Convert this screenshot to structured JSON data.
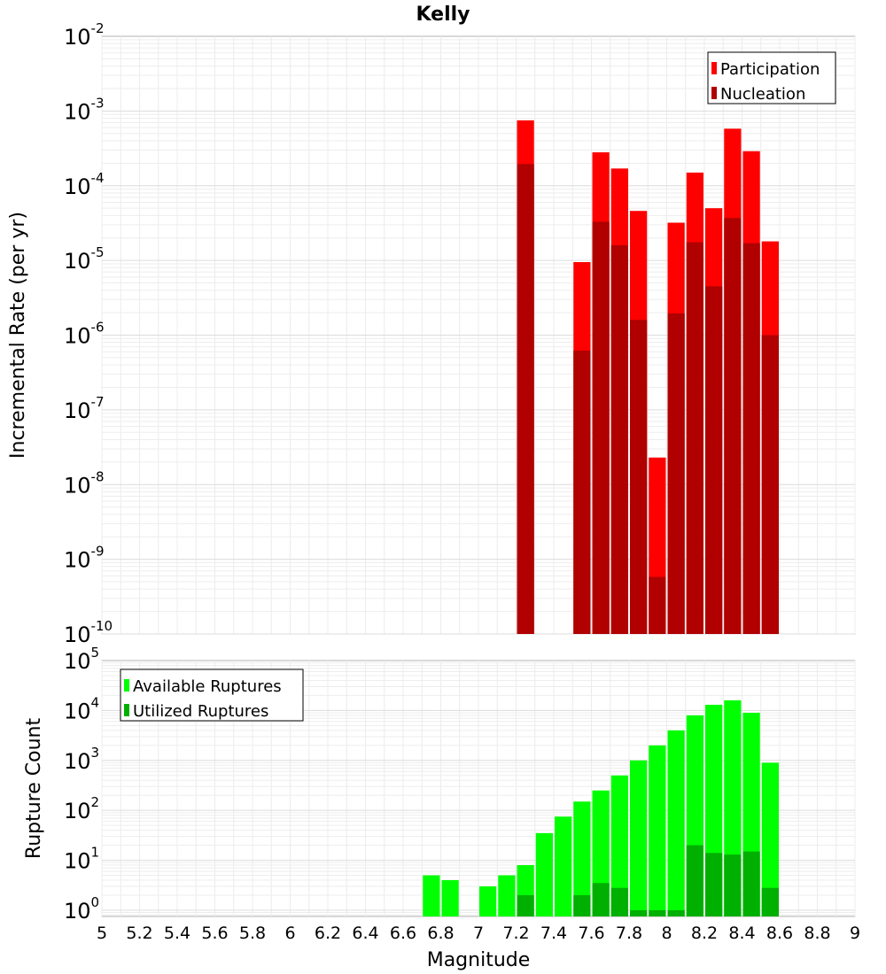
{
  "chart_data": [
    {
      "type": "bar",
      "title": "Kelly",
      "xlabel": "Magnitude",
      "ylabel": "Incremental Rate (per yr)",
      "yscale": "log",
      "xlim": [
        5,
        9
      ],
      "ylim": [
        1e-10,
        0.01
      ],
      "bin_width": 0.1,
      "grid": true,
      "legend_position": "top-right",
      "x": [
        7.25,
        7.55,
        7.65,
        7.75,
        7.85,
        7.95,
        8.05,
        8.15,
        8.25,
        8.35,
        8.45,
        8.55
      ],
      "series": [
        {
          "name": "Participation",
          "color": "#ff0000",
          "values": [
            0.00075,
            9.5e-06,
            0.00028,
            0.00017,
            4.6e-05,
            2.3e-08,
            3.2e-05,
            0.00015,
            5e-05,
            0.00058,
            0.00029,
            1.8e-05
          ]
        },
        {
          "name": "Nucleation",
          "color": "#b00000",
          "values": [
            0.000195,
            6.2e-07,
            3.3e-05,
            1.6e-05,
            1.6e-06,
            5.8e-10,
            1.95e-06,
            1.75e-05,
            4.5e-06,
            3.7e-05,
            1.7e-05,
            1e-06
          ]
        }
      ]
    },
    {
      "type": "bar",
      "xlabel": "Magnitude",
      "ylabel": "Rupture Count",
      "yscale": "log",
      "xlim": [
        5,
        9
      ],
      "ylim": [
        0.75,
        100000.0
      ],
      "bin_width": 0.1,
      "grid": true,
      "legend_position": "top-left",
      "x": [
        6.75,
        6.85,
        7.05,
        7.15,
        7.25,
        7.35,
        7.45,
        7.55,
        7.65,
        7.75,
        7.85,
        7.95,
        8.05,
        8.15,
        8.25,
        8.35,
        8.45,
        8.55
      ],
      "series": [
        {
          "name": "Available Ruptures",
          "color": "#00ff00",
          "values": [
            5,
            4,
            3,
            5,
            8,
            35,
            75,
            150,
            250,
            500,
            1000,
            2000,
            4000,
            8000,
            13000,
            16000,
            9000,
            900
          ]
        },
        {
          "name": "Utilized Ruptures",
          "color": "#00b000",
          "values": [
            0,
            0,
            0,
            0,
            2,
            0,
            0,
            2,
            3.5,
            2.8,
            1,
            1,
            1,
            20,
            14,
            13,
            15,
            2.8
          ]
        }
      ]
    }
  ]
}
